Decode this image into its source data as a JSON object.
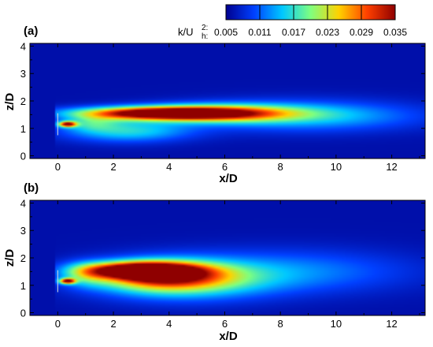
{
  "colorbar": {
    "label_main": "k/U",
    "label_sup": "2:",
    "label_sub": "h:",
    "ticks": [
      "0.005",
      "0.011",
      "0.017",
      "0.023",
      "0.029",
      "0.035"
    ],
    "colors": [
      "#00008f",
      "#0040ff",
      "#00c8ff",
      "#7fff7f",
      "#ffd200",
      "#ff4000",
      "#8f0000"
    ]
  },
  "chart_data": [
    {
      "type": "heatmap",
      "panel_label": "(a)",
      "xlabel": "x/D",
      "ylabel": "z/D",
      "xlim": [
        -1,
        13.2
      ],
      "ylim": [
        -0.1,
        4.1
      ],
      "xticks": [
        0,
        2,
        4,
        6,
        8,
        10,
        12
      ],
      "yticks": [
        0,
        1,
        2,
        3,
        4
      ],
      "xtick_labels": [
        "0",
        "2",
        "4",
        "6",
        "8",
        "10",
        "12"
      ],
      "ytick_labels": [
        "0",
        "1",
        "2",
        "3",
        "4"
      ],
      "value_range": [
        0.005,
        0.035
      ],
      "features": [
        {
          "x": 3.5,
          "z": 1.55,
          "sx": 2.0,
          "sz": 0.16,
          "k": 0.034
        },
        {
          "x": 5.8,
          "z": 1.55,
          "sx": 2.0,
          "sz": 0.22,
          "k": 0.024
        },
        {
          "x": 9.0,
          "z": 1.45,
          "sx": 2.8,
          "sz": 0.38,
          "k": 0.014
        },
        {
          "x": 2.5,
          "z": 0.9,
          "sx": 1.6,
          "sz": 0.28,
          "k": 0.015
        },
        {
          "x": 0.35,
          "z": 1.15,
          "sx": 0.22,
          "sz": 0.07,
          "k": 0.031
        },
        {
          "x": 1.2,
          "z": 1.2,
          "sx": 0.7,
          "sz": 0.2,
          "k": 0.012
        }
      ]
    },
    {
      "type": "heatmap",
      "panel_label": "(b)",
      "xlabel": "x/D",
      "ylabel": "z/D",
      "xlim": [
        -1,
        13.2
      ],
      "ylim": [
        -0.1,
        4.1
      ],
      "xticks": [
        0,
        2,
        4,
        6,
        8,
        10,
        12
      ],
      "yticks": [
        0,
        1,
        2,
        3,
        4
      ],
      "xtick_labels": [
        "0",
        "2",
        "4",
        "6",
        "8",
        "10",
        "12"
      ],
      "ytick_labels": [
        "0",
        "1",
        "2",
        "3",
        "4"
      ],
      "value_range": [
        0.005,
        0.035
      ],
      "features": [
        {
          "x": 2.9,
          "z": 1.55,
          "sx": 1.3,
          "sz": 0.2,
          "k": 0.034
        },
        {
          "x": 3.8,
          "z": 1.35,
          "sx": 1.5,
          "sz": 0.35,
          "k": 0.024
        },
        {
          "x": 4.5,
          "z": 1.2,
          "sx": 2.2,
          "sz": 0.5,
          "k": 0.017
        },
        {
          "x": 8.5,
          "z": 1.5,
          "sx": 3.0,
          "sz": 0.55,
          "k": 0.011
        },
        {
          "x": 0.35,
          "z": 1.15,
          "sx": 0.2,
          "sz": 0.07,
          "k": 0.031
        },
        {
          "x": 1.0,
          "z": 1.4,
          "sx": 0.6,
          "sz": 0.3,
          "k": 0.012
        }
      ]
    }
  ]
}
